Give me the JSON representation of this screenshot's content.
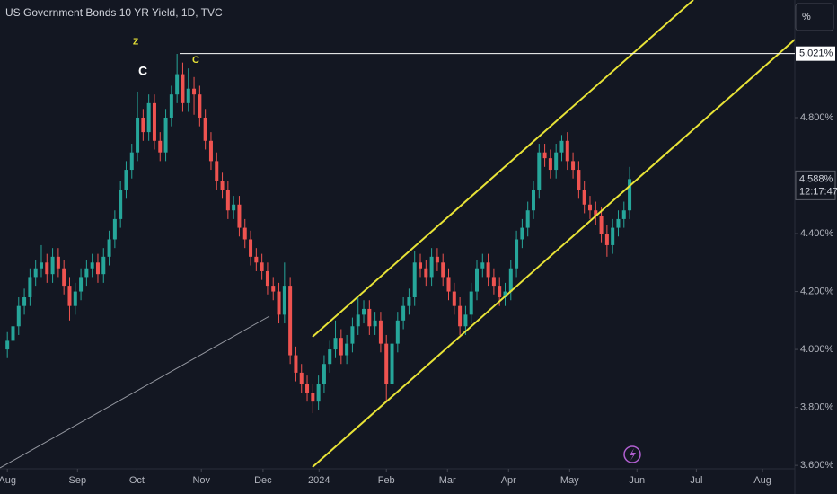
{
  "chart_data": {
    "type": "candlestick",
    "title": "US Government Bonds 10 YR Yield, 1D, TVC",
    "unit_button": "%",
    "annotations": [
      "Z",
      "C",
      "C"
    ],
    "up_color": "#26a69a",
    "down_color": "#ef5350",
    "grid": false,
    "xlim": [
      -1.3,
      139.2
    ],
    "xticks": [
      {
        "value": 0,
        "label": "Aug"
      },
      {
        "value": 12.4,
        "label": "Sep"
      },
      {
        "value": 22.9,
        "label": "Oct"
      },
      {
        "value": 34.3,
        "label": "Nov"
      },
      {
        "value": 45.2,
        "label": "Dec"
      },
      {
        "value": 55.1,
        "label": "2024"
      },
      {
        "value": 67,
        "label": "Feb"
      },
      {
        "value": 77.8,
        "label": "Mar"
      },
      {
        "value": 88.6,
        "label": "Apr"
      },
      {
        "value": 99.4,
        "label": "May"
      },
      {
        "value": 111.3,
        "label": "Jun"
      },
      {
        "value": 121.8,
        "label": "Jul"
      },
      {
        "value": 133.5,
        "label": "Aug"
      }
    ],
    "ylim": [
      3.588,
      5.206
    ],
    "yticks": [
      {
        "value": 3.6,
        "label": "3.600%"
      },
      {
        "value": 3.8,
        "label": "3.800%"
      },
      {
        "value": 4.0,
        "label": "4.000%"
      },
      {
        "value": 4.2,
        "label": "4.200%"
      },
      {
        "value": 4.4,
        "label": "4.400%"
      },
      {
        "value": 4.8,
        "label": "4.800%"
      }
    ],
    "price_line": {
      "value": 5.021,
      "label": "5.021%"
    },
    "last_price": {
      "value": 4.588,
      "label": "4.588%"
    },
    "countdown": "12:17:47",
    "open": [
      4.0,
      4.03,
      4.08,
      4.15,
      4.18,
      4.25,
      4.28,
      4.3,
      4.26,
      4.32,
      4.28,
      4.22,
      4.15,
      4.2,
      4.25,
      4.28,
      4.3,
      4.26,
      4.32,
      4.38,
      4.45,
      4.55,
      4.62,
      4.68,
      4.8,
      4.75,
      4.85,
      4.72,
      4.68,
      4.8,
      4.88,
      4.95,
      4.85,
      4.9,
      4.88,
      4.8,
      4.72,
      4.65,
      4.58,
      4.55,
      4.48,
      4.5,
      4.42,
      4.38,
      4.32,
      4.3,
      4.27,
      4.22,
      4.2,
      4.12,
      4.22,
      3.98,
      3.92,
      3.88,
      3.85,
      3.82,
      3.88,
      3.95,
      4.0,
      4.04,
      3.98,
      4.02,
      4.08,
      4.12,
      4.14,
      4.08,
      4.1,
      4.02,
      3.88,
      4.02,
      4.1,
      4.15,
      4.18,
      4.3,
      4.28,
      4.25,
      4.32,
      4.3,
      4.25,
      4.2,
      4.15,
      4.08,
      4.12,
      4.2,
      4.28,
      4.3,
      4.25,
      4.22,
      4.18,
      4.2,
      4.28,
      4.38,
      4.42,
      4.48,
      4.55,
      4.68,
      4.66,
      4.62,
      4.68,
      4.72,
      4.65,
      4.62,
      4.55,
      4.5,
      4.48,
      4.46,
      4.4,
      4.36,
      4.42,
      4.45,
      4.48
    ],
    "high": [
      4.06,
      4.11,
      4.18,
      4.21,
      4.28,
      4.31,
      4.36,
      4.33,
      4.35,
      4.35,
      4.31,
      4.25,
      4.23,
      4.28,
      4.31,
      4.33,
      4.33,
      4.35,
      4.41,
      4.48,
      4.58,
      4.65,
      4.71,
      4.89,
      4.83,
      4.88,
      4.88,
      4.75,
      4.83,
      4.91,
      5.02,
      4.99,
      4.97,
      4.94,
      4.91,
      4.83,
      4.75,
      4.68,
      4.61,
      4.58,
      4.53,
      4.53,
      4.45,
      4.41,
      4.35,
      4.33,
      4.3,
      4.25,
      4.23,
      4.3,
      4.25,
      4.01,
      3.95,
      3.91,
      3.88,
      3.91,
      3.98,
      4.03,
      4.1,
      4.07,
      4.05,
      4.11,
      4.18,
      4.17,
      4.17,
      4.13,
      4.13,
      4.05,
      4.05,
      4.13,
      4.18,
      4.21,
      4.34,
      4.33,
      4.31,
      4.35,
      4.35,
      4.33,
      4.28,
      4.23,
      4.18,
      4.15,
      4.23,
      4.31,
      4.33,
      4.33,
      4.28,
      4.25,
      4.23,
      4.31,
      4.41,
      4.45,
      4.51,
      4.58,
      4.71,
      4.71,
      4.69,
      4.71,
      4.74,
      4.75,
      4.68,
      4.65,
      4.58,
      4.53,
      4.51,
      4.49,
      4.43,
      4.45,
      4.48,
      4.51,
      4.63
    ],
    "low": [
      3.97,
      4.0,
      4.05,
      4.12,
      4.15,
      4.22,
      4.25,
      4.23,
      4.23,
      4.25,
      4.19,
      4.1,
      4.12,
      4.17,
      4.22,
      4.25,
      4.23,
      4.23,
      4.29,
      4.35,
      4.42,
      4.52,
      4.59,
      4.65,
      4.72,
      4.72,
      4.69,
      4.65,
      4.65,
      4.77,
      4.85,
      4.82,
      4.82,
      4.81,
      4.77,
      4.69,
      4.62,
      4.55,
      4.52,
      4.45,
      4.45,
      4.39,
      4.35,
      4.29,
      4.27,
      4.24,
      4.19,
      4.17,
      4.09,
      4.09,
      3.95,
      3.89,
      3.85,
      3.82,
      3.78,
      3.79,
      3.85,
      3.92,
      3.97,
      3.95,
      3.95,
      3.99,
      4.05,
      4.09,
      4.05,
      4.05,
      3.99,
      3.82,
      3.85,
      3.99,
      4.07,
      4.12,
      4.15,
      4.25,
      4.22,
      4.22,
      4.27,
      4.22,
      4.17,
      4.12,
      4.05,
      4.05,
      4.09,
      4.17,
      4.25,
      4.22,
      4.19,
      4.15,
      4.15,
      4.17,
      4.25,
      4.35,
      4.39,
      4.45,
      4.52,
      4.63,
      4.59,
      4.59,
      4.65,
      4.62,
      4.59,
      4.52,
      4.47,
      4.45,
      4.43,
      4.37,
      4.32,
      4.33,
      4.39,
      4.42,
      4.45
    ],
    "close": [
      4.03,
      4.08,
      4.15,
      4.18,
      4.25,
      4.28,
      4.3,
      4.26,
      4.32,
      4.28,
      4.22,
      4.15,
      4.2,
      4.25,
      4.28,
      4.3,
      4.26,
      4.32,
      4.38,
      4.45,
      4.55,
      4.62,
      4.68,
      4.8,
      4.75,
      4.85,
      4.72,
      4.68,
      4.8,
      4.88,
      4.95,
      4.85,
      4.9,
      4.88,
      4.8,
      4.72,
      4.65,
      4.58,
      4.55,
      4.48,
      4.5,
      4.42,
      4.38,
      4.32,
      4.3,
      4.27,
      4.22,
      4.2,
      4.12,
      4.22,
      3.98,
      3.92,
      3.88,
      3.85,
      3.82,
      3.88,
      3.95,
      4.0,
      4.04,
      3.98,
      4.02,
      4.08,
      4.12,
      4.14,
      4.08,
      4.1,
      4.02,
      3.88,
      4.02,
      4.1,
      4.15,
      4.18,
      4.3,
      4.28,
      4.25,
      4.32,
      4.3,
      4.25,
      4.2,
      4.15,
      4.08,
      4.12,
      4.2,
      4.28,
      4.3,
      4.25,
      4.22,
      4.18,
      4.2,
      4.28,
      4.38,
      4.42,
      4.48,
      4.55,
      4.68,
      4.66,
      4.62,
      4.68,
      4.72,
      4.65,
      4.62,
      4.55,
      4.5,
      4.48,
      4.46,
      4.4,
      4.36,
      4.42,
      4.45,
      4.48,
      4.588
    ]
  }
}
